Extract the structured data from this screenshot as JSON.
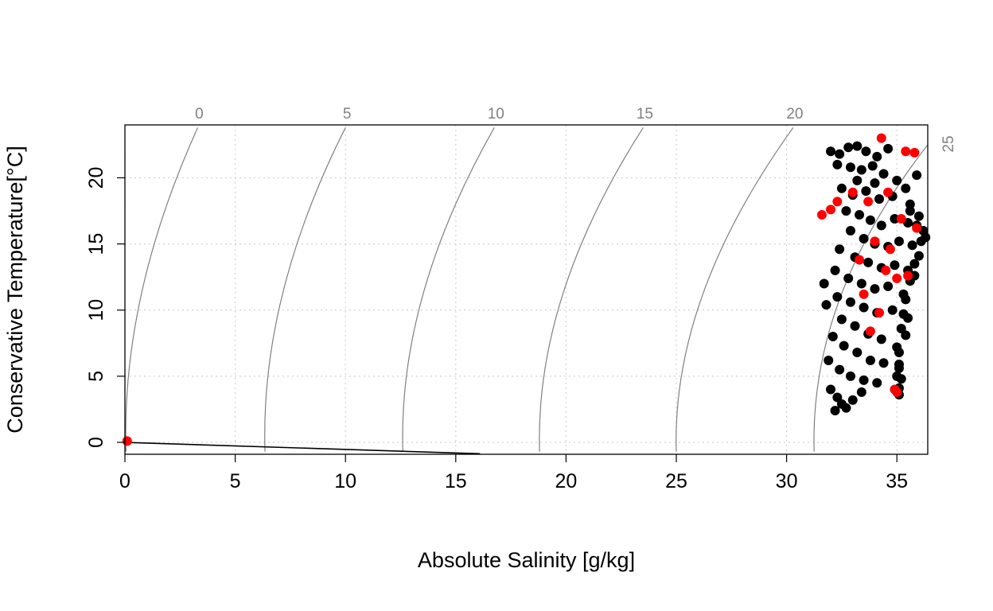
{
  "chart_data": {
    "type": "scatter",
    "title": "",
    "xlabel": "Absolute Salinity [g/kg]",
    "ylabel": "Conservative Temperature[°C]",
    "xlim": [
      0,
      36.4
    ],
    "ylim": [
      -0.9,
      24
    ],
    "x_ticks": [
      "0",
      "5",
      "10",
      "15",
      "20",
      "25",
      "30",
      "35"
    ],
    "y_ticks": [
      "0",
      "5",
      "10",
      "15",
      "20"
    ],
    "grid": true,
    "legend": "none",
    "density_contours": {
      "description_units": "sigma-0 isopycnals (kg/m3 - 1000)",
      "labels": [
        "0",
        "5",
        "10",
        "15",
        "20",
        "25"
      ],
      "color": "#808080"
    },
    "freezing_line": {
      "color": "#000000",
      "points": [
        [
          0,
          0
        ],
        [
          16.1,
          -0.86
        ]
      ]
    },
    "series": [
      {
        "color": "#000000",
        "points": [
          [
            32.0,
            22.0
          ],
          [
            32.4,
            21.8
          ],
          [
            32.8,
            22.3
          ],
          [
            33.2,
            22.4
          ],
          [
            33.6,
            22.0
          ],
          [
            34.1,
            21.6
          ],
          [
            34.6,
            22.2
          ],
          [
            32.3,
            21.0
          ],
          [
            32.9,
            20.8
          ],
          [
            33.4,
            20.6
          ],
          [
            33.9,
            20.9
          ],
          [
            34.4,
            20.3
          ],
          [
            35.0,
            19.8
          ],
          [
            35.4,
            19.2
          ],
          [
            32.5,
            19.2
          ],
          [
            33.0,
            18.7
          ],
          [
            33.6,
            19.0
          ],
          [
            34.2,
            18.4
          ],
          [
            34.8,
            18.6
          ],
          [
            35.6,
            18.0
          ],
          [
            36.0,
            17.1
          ],
          [
            32.7,
            17.5
          ],
          [
            33.3,
            17.2
          ],
          [
            33.8,
            16.8
          ],
          [
            34.3,
            16.4
          ],
          [
            34.9,
            16.9
          ],
          [
            35.5,
            16.6
          ],
          [
            36.2,
            16.0
          ],
          [
            32.9,
            16.0
          ],
          [
            33.5,
            15.4
          ],
          [
            34.0,
            15.0
          ],
          [
            34.6,
            14.8
          ],
          [
            35.1,
            15.2
          ],
          [
            35.7,
            14.9
          ],
          [
            36.3,
            15.5
          ],
          [
            32.4,
            14.6
          ],
          [
            33.1,
            14.0
          ],
          [
            33.7,
            13.6
          ],
          [
            34.3,
            13.2
          ],
          [
            34.9,
            13.4
          ],
          [
            35.5,
            13.0
          ],
          [
            36.0,
            14.1
          ],
          [
            32.2,
            13.0
          ],
          [
            32.8,
            12.4
          ],
          [
            33.4,
            12.0
          ],
          [
            34.0,
            11.6
          ],
          [
            34.6,
            11.8
          ],
          [
            35.3,
            11.2
          ],
          [
            35.8,
            12.6
          ],
          [
            31.7,
            12.0
          ],
          [
            32.3,
            11.0
          ],
          [
            32.9,
            10.6
          ],
          [
            33.5,
            10.2
          ],
          [
            34.1,
            9.8
          ],
          [
            34.8,
            10.0
          ],
          [
            35.5,
            9.4
          ],
          [
            31.8,
            10.4
          ],
          [
            32.5,
            9.3
          ],
          [
            33.1,
            8.8
          ],
          [
            33.7,
            8.2
          ],
          [
            34.3,
            7.8
          ],
          [
            35.0,
            7.2
          ],
          [
            35.4,
            8.1
          ],
          [
            32.1,
            8.0
          ],
          [
            32.6,
            7.3
          ],
          [
            33.2,
            6.8
          ],
          [
            33.8,
            6.2
          ],
          [
            34.4,
            6.0
          ],
          [
            35.1,
            5.6
          ],
          [
            35.2,
            4.8
          ],
          [
            31.9,
            6.2
          ],
          [
            32.4,
            5.5
          ],
          [
            32.9,
            5.0
          ],
          [
            33.5,
            4.7
          ],
          [
            34.1,
            4.5
          ],
          [
            35.1,
            4.1
          ],
          [
            35.1,
            3.6
          ],
          [
            32.0,
            4.0
          ],
          [
            32.3,
            3.4
          ],
          [
            32.5,
            2.9
          ],
          [
            32.7,
            2.6
          ],
          [
            33.0,
            3.2
          ],
          [
            33.4,
            3.8
          ],
          [
            32.2,
            2.4
          ],
          [
            35.6,
            17.5
          ],
          [
            35.9,
            16.4
          ],
          [
            36.1,
            15.2
          ],
          [
            35.8,
            13.5
          ],
          [
            35.6,
            12.2
          ],
          [
            35.4,
            10.8
          ],
          [
            35.3,
            9.7
          ],
          [
            35.2,
            8.6
          ],
          [
            35.1,
            6.8
          ],
          [
            35.1,
            5.9
          ],
          [
            35.0,
            5.0
          ],
          [
            34.0,
            19.6
          ],
          [
            33.2,
            19.8
          ],
          [
            35.9,
            20.2
          ]
        ]
      },
      {
        "color": "#ff0000",
        "points": [
          [
            34.3,
            23.0
          ],
          [
            35.4,
            22.0
          ],
          [
            35.8,
            21.9
          ],
          [
            32.3,
            18.2
          ],
          [
            31.6,
            17.2
          ],
          [
            32.0,
            17.6
          ],
          [
            33.0,
            18.9
          ],
          [
            33.7,
            18.2
          ],
          [
            34.6,
            18.9
          ],
          [
            35.2,
            16.9
          ],
          [
            35.9,
            16.2
          ],
          [
            34.0,
            15.2
          ],
          [
            34.5,
            13.0
          ],
          [
            35.0,
            12.4
          ],
          [
            35.5,
            12.6
          ],
          [
            33.5,
            11.2
          ],
          [
            34.2,
            9.8
          ],
          [
            33.8,
            8.4
          ],
          [
            34.9,
            4.0
          ],
          [
            35.0,
            3.8
          ],
          [
            33.3,
            13.8
          ],
          [
            34.7,
            14.6
          ],
          [
            0.1,
            0.1
          ]
        ]
      }
    ]
  }
}
